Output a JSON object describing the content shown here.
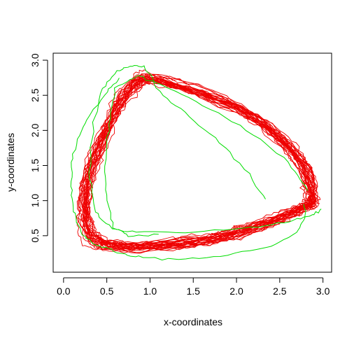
{
  "chart_data": {
    "type": "line",
    "title": "",
    "xlabel": "x-coordinates",
    "ylabel": "y-coordinates",
    "xlim": [
      -0.12,
      3.1
    ],
    "ylim": [
      -0.02,
      3.1
    ],
    "x_ticks": [
      0.0,
      0.5,
      1.0,
      1.5,
      2.0,
      2.5,
      3.0
    ],
    "y_ticks": [
      0.5,
      1.0,
      1.5,
      2.0,
      2.5,
      3.0
    ],
    "x_tick_labels": [
      "0.0",
      "0.5",
      "1.0",
      "1.5",
      "2.0",
      "2.5",
      "3.0"
    ],
    "y_tick_labels": [
      "0.5",
      "1.0",
      "1.5",
      "2.0",
      "2.5",
      "3.0"
    ],
    "grid": false,
    "legend": "none",
    "colors": {
      "green": "#00dd00",
      "red": "#ee0000",
      "axis": "#000000"
    },
    "base_orbit": {
      "description_points": [
        [
          2.88,
          1.05
        ],
        [
          2.7,
          1.65
        ],
        [
          2.05,
          2.3
        ],
        [
          1.1,
          2.72
        ],
        [
          0.8,
          2.62
        ],
        [
          0.52,
          2.05
        ],
        [
          0.28,
          1.2
        ],
        [
          0.32,
          0.52
        ],
        [
          0.7,
          0.35
        ],
        [
          1.55,
          0.42
        ],
        [
          2.2,
          0.62
        ],
        [
          2.72,
          0.88
        ]
      ],
      "radial_jitter_sd": 0.06,
      "n_orbits": 28
    },
    "series": [
      {
        "color": "green",
        "x": [
          2.35,
          2.1,
          1.75,
          1.4,
          1.1,
          0.95,
          0.8,
          0.62,
          0.45,
          0.35,
          0.3,
          0.36,
          0.55,
          0.85,
          1.4,
          2.1,
          2.55,
          2.85,
          2.98
        ],
        "y": [
          1.0,
          1.45,
          1.9,
          2.25,
          2.55,
          2.9,
          2.92,
          2.85,
          2.6,
          2.1,
          1.4,
          0.85,
          0.6,
          0.55,
          0.56,
          0.6,
          0.68,
          0.78,
          0.88
        ]
      },
      {
        "color": "green",
        "x": [
          0.65,
          0.5,
          0.35,
          0.2,
          0.1,
          0.08,
          0.12,
          0.2,
          0.35,
          0.55,
          0.75,
          1.0,
          1.4,
          1.9,
          2.4,
          2.7,
          2.8,
          2.78
        ],
        "y": [
          2.75,
          2.55,
          2.3,
          2.0,
          1.6,
          1.2,
          0.85,
          0.55,
          0.38,
          0.3,
          0.22,
          0.18,
          0.16,
          0.22,
          0.35,
          0.55,
          0.75,
          0.95
        ]
      },
      {
        "color": "green",
        "x": [
          2.82,
          2.6,
          2.2,
          1.7,
          1.2,
          0.85,
          0.6,
          0.52,
          0.48,
          0.5,
          0.58,
          0.75,
          1.1
        ],
        "y": [
          1.15,
          1.55,
          1.95,
          2.3,
          2.62,
          2.78,
          2.6,
          2.1,
          1.5,
          1.0,
          0.62,
          0.5,
          0.52
        ]
      }
    ]
  }
}
